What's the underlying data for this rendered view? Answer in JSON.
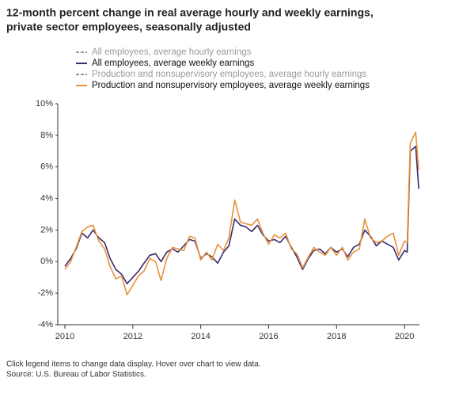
{
  "chart_data": {
    "type": "line",
    "title": [
      "12-month percent change in real average hourly and weekly earnings,",
      "private sector employees, seasonally adjusted"
    ],
    "notes": [
      "Click legend items to change data display. Hover over chart to view data.",
      "Source: U.S. Bureau of Labor Statistics."
    ],
    "x": [
      2010,
      2010.17,
      2010.33,
      2010.5,
      2010.67,
      2010.83,
      2011,
      2011.17,
      2011.33,
      2011.5,
      2011.67,
      2011.83,
      2012,
      2012.17,
      2012.33,
      2012.5,
      2012.67,
      2012.83,
      2013,
      2013.17,
      2013.33,
      2013.5,
      2013.67,
      2013.83,
      2014,
      2014.17,
      2014.33,
      2014.5,
      2014.67,
      2014.83,
      2015,
      2015.17,
      2015.33,
      2015.5,
      2015.67,
      2015.83,
      2016,
      2016.17,
      2016.33,
      2016.5,
      2016.67,
      2016.83,
      2017,
      2017.17,
      2017.33,
      2017.5,
      2017.67,
      2017.83,
      2018,
      2018.17,
      2018.33,
      2018.5,
      2018.67,
      2018.83,
      2019,
      2019.17,
      2019.33,
      2019.5,
      2019.67,
      2019.83,
      2020,
      2020.08,
      2020.17,
      2020.33,
      2020.42
    ],
    "series": [
      {
        "name": "All employees, average hourly earnings",
        "color": "#999999",
        "visible": false
      },
      {
        "name": "All employees, average weekly earnings",
        "color": "#3b2a6e",
        "visible": true,
        "values": [
          -0.3,
          0.2,
          0.8,
          1.8,
          1.5,
          2.0,
          1.5,
          1.2,
          0.2,
          -0.5,
          -0.8,
          -1.4,
          -1.0,
          -0.6,
          -0.1,
          0.4,
          0.5,
          0.0,
          0.6,
          0.8,
          0.6,
          1.0,
          1.4,
          1.3,
          0.2,
          0.5,
          0.3,
          -0.1,
          0.6,
          1.0,
          2.7,
          2.3,
          2.2,
          1.9,
          2.3,
          1.7,
          1.3,
          1.4,
          1.2,
          1.6,
          0.9,
          0.3,
          -0.5,
          0.2,
          0.7,
          0.8,
          0.5,
          0.9,
          0.6,
          0.8,
          0.3,
          0.9,
          1.1,
          2.0,
          1.6,
          1.0,
          1.3,
          1.1,
          0.9,
          0.1,
          0.7,
          0.6,
          7.0,
          7.3,
          4.6
        ]
      },
      {
        "name": "Production and nonsupervisory employees, average hourly earnings",
        "color": "#999999",
        "visible": false
      },
      {
        "name": "Production and nonsupervisory employees, average weekly earnings",
        "color": "#e8913a",
        "visible": true,
        "values": [
          -0.5,
          0.0,
          0.9,
          1.9,
          2.2,
          2.3,
          1.3,
          0.8,
          -0.3,
          -1.1,
          -0.9,
          -2.1,
          -1.5,
          -0.9,
          -0.6,
          0.2,
          0.0,
          -1.2,
          0.2,
          0.9,
          0.8,
          0.7,
          1.6,
          1.5,
          0.1,
          0.6,
          0.1,
          1.1,
          0.7,
          1.5,
          3.9,
          2.5,
          2.4,
          2.3,
          2.7,
          1.8,
          1.1,
          1.7,
          1.5,
          1.8,
          0.8,
          0.5,
          -0.4,
          0.3,
          0.9,
          0.6,
          0.4,
          0.9,
          0.4,
          0.9,
          0.1,
          0.6,
          0.8,
          2.7,
          1.5,
          1.2,
          1.3,
          1.6,
          1.8,
          0.4,
          1.3,
          1.2,
          7.5,
          8.2,
          5.8
        ]
      }
    ],
    "xlim": [
      2009.79,
      2020.44
    ],
    "xticks": [
      2010,
      2012,
      2014,
      2016,
      2018,
      2020
    ],
    "ylim": [
      -4,
      10
    ],
    "yticks": [
      {
        "value": -4,
        "label": "-4%"
      },
      {
        "value": -2,
        "label": "-2%"
      },
      {
        "value": 0,
        "label": "0%"
      },
      {
        "value": 2,
        "label": "2%"
      },
      {
        "value": 4,
        "label": "4%"
      },
      {
        "value": 6,
        "label": "6%"
      },
      {
        "value": 8,
        "label": "8%"
      },
      {
        "value": 10,
        "label": "10%"
      }
    ],
    "grid": false
  }
}
